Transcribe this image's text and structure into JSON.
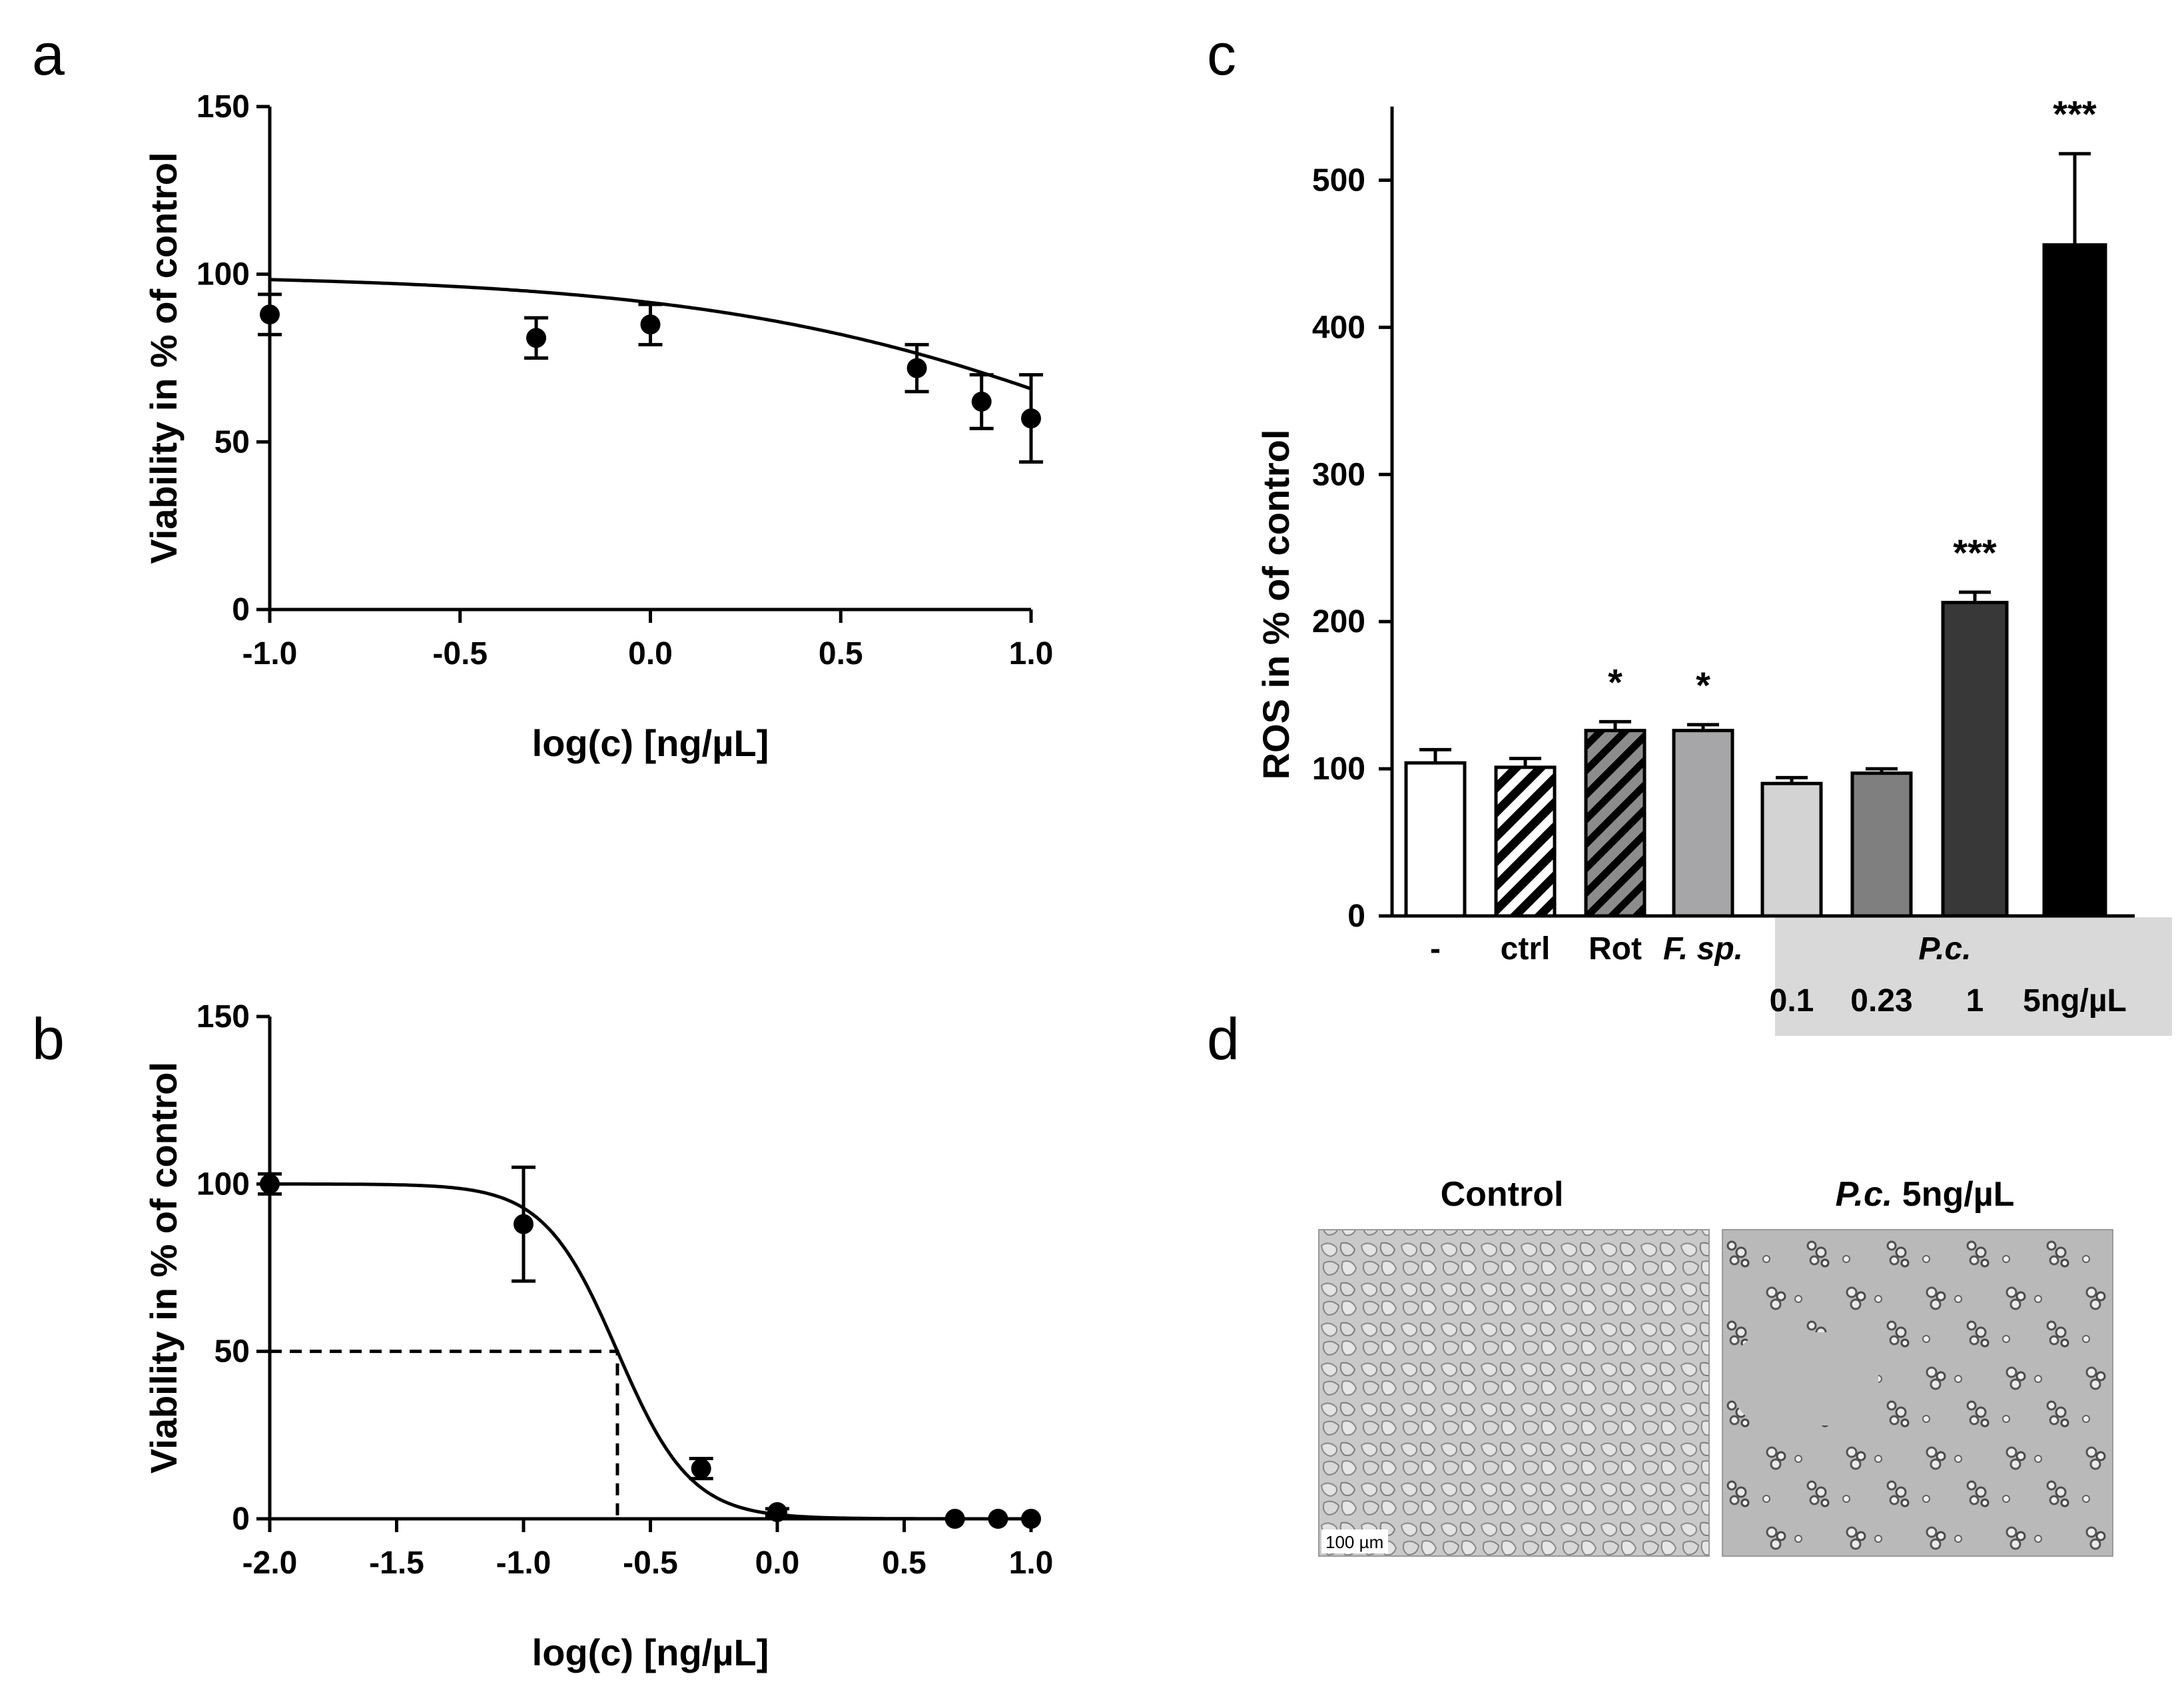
{
  "colors": {
    "ink": "#000000",
    "gray_box": "#d9d9d9",
    "bg": "#ffffff"
  },
  "panel_letters": {
    "a": "a",
    "b": "b",
    "c": "c",
    "d": "d"
  },
  "chart_data": [
    {
      "id": "a",
      "type": "scatter",
      "title": "",
      "xlabel": "log(c) [ng/µL]",
      "ylabel": "Viability in % of control",
      "xlim": [
        -1.0,
        1.0
      ],
      "ylim": [
        0,
        150
      ],
      "xticks": [
        -1.0,
        -0.5,
        0.0,
        0.5,
        1.0
      ],
      "xtick_labels": [
        "-1.0",
        "-0.5",
        "0.0",
        "0.5",
        "1.0"
      ],
      "yticks": [
        0,
        50,
        100,
        150
      ],
      "ytick_labels": [
        "0",
        "50",
        "100",
        "150"
      ],
      "points": [
        {
          "x": -1.0,
          "y": 88,
          "err": 6
        },
        {
          "x": -0.3,
          "y": 81,
          "err": 6
        },
        {
          "x": 0.0,
          "y": 85,
          "err": 6
        },
        {
          "x": 0.7,
          "y": 72,
          "err": 7
        },
        {
          "x": 0.87,
          "y": 62,
          "err": 8
        },
        {
          "x": 1.0,
          "y": 57,
          "err": 13
        }
      ],
      "fit": {
        "model": "four-parameter-logistic",
        "bottom": 0,
        "top": 100,
        "logEC50": 1.38,
        "hill": -0.75
      }
    },
    {
      "id": "b",
      "type": "scatter",
      "title": "",
      "xlabel": "log(c) [ng/µL]",
      "ylabel": "Viability in % of control",
      "xlim": [
        -2.0,
        1.0
      ],
      "ylim": [
        0,
        150
      ],
      "xticks": [
        -2.0,
        -1.5,
        -1.0,
        -0.5,
        0.0,
        0.5,
        1.0
      ],
      "xtick_labels": [
        "-2.0",
        "-1.5",
        "-1.0",
        "-0.5",
        "0.0",
        "0.5",
        "1.0"
      ],
      "yticks": [
        0,
        50,
        100,
        150
      ],
      "ytick_labels": [
        "0",
        "50",
        "100",
        "150"
      ],
      "points": [
        {
          "x": -2.0,
          "y": 100,
          "err": 3
        },
        {
          "x": -1.0,
          "y": 88,
          "err": 17
        },
        {
          "x": -0.3,
          "y": 15,
          "err": 3
        },
        {
          "x": 0.0,
          "y": 2,
          "err": 1
        },
        {
          "x": 0.7,
          "y": 0,
          "err": 0
        },
        {
          "x": 0.87,
          "y": 0,
          "err": 0
        },
        {
          "x": 1.0,
          "y": 0,
          "err": 0
        }
      ],
      "fit": {
        "model": "four-parameter-logistic",
        "bottom": 0,
        "top": 100,
        "logEC50": -0.63,
        "hill": -3.0
      },
      "ec50_marker": {
        "x": -0.63,
        "y": 50
      }
    },
    {
      "id": "c",
      "type": "bar",
      "title": "",
      "xlabel": "",
      "ylabel": "ROS in % of control",
      "ylim": [
        0,
        550
      ],
      "yticks": [
        0,
        100,
        200,
        300,
        400,
        500
      ],
      "ytick_labels": [
        "0",
        "100",
        "200",
        "300",
        "400",
        "500"
      ],
      "categories": [
        "-",
        "ctrl",
        "Rot",
        "F. sp.",
        "0.1",
        "0.23",
        "1",
        "5ng/µL"
      ],
      "values": [
        104,
        101,
        126,
        126,
        90,
        97,
        213,
        456
      ],
      "errors": [
        9,
        6,
        6,
        4,
        4,
        3,
        7,
        62
      ],
      "significance": [
        "",
        "",
        "*",
        "*",
        "",
        "",
        "***",
        "***"
      ],
      "fills": [
        "#ffffff",
        "hatch-white",
        "hatch-gray",
        "#a6a6a9",
        "#d3d3d3",
        "#7f7f7f",
        "#383838",
        "#000000"
      ],
      "group_label": "P.c.",
      "group_members": [
        "0.1",
        "0.23",
        "1",
        "5ng/µL"
      ]
    }
  ],
  "micrographs": {
    "control_title": "Control",
    "treated_title_italic": "P.c.",
    "treated_title_rest": " 5ng/µL",
    "scale_bar_label": "100 µm"
  }
}
